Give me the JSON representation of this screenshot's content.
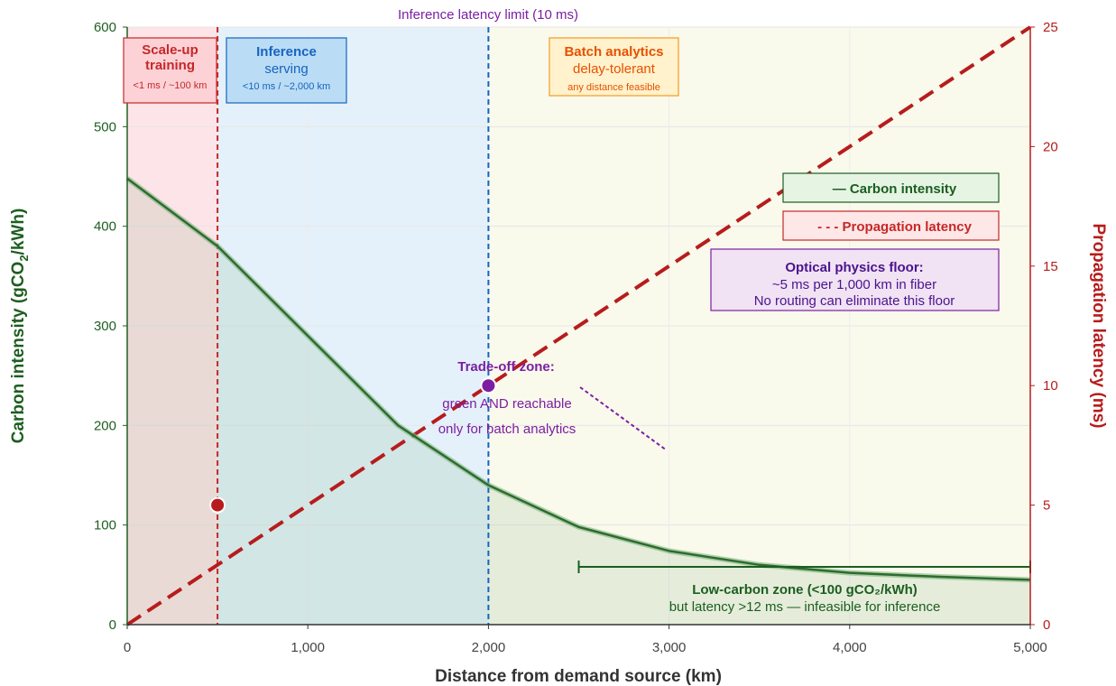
{
  "chart_data": {
    "type": "line",
    "xlabel": "Distance from demand source (km)",
    "ylabel_left": "Carbon intensity (gCO₂/kWh)",
    "ylabel_right": "Propagation latency (ms)",
    "xlim": [
      0,
      5000
    ],
    "ylim_left": [
      0,
      600
    ],
    "ylim_right": [
      0,
      25
    ],
    "x_ticks": [
      0,
      1000,
      2000,
      3000,
      4000,
      5000
    ],
    "x_tick_labels": [
      "0",
      "1,000",
      "2,000",
      "3,000",
      "4,000",
      "5,000"
    ],
    "y_left_ticks": [
      0,
      100,
      200,
      300,
      400,
      500,
      600
    ],
    "y_right_ticks": [
      0,
      5,
      10,
      15,
      20,
      25
    ],
    "grid": true,
    "series": [
      {
        "name": "Carbon intensity",
        "axis": "left",
        "style": "solid",
        "color": "#2e6b30",
        "x": [
          0,
          500,
          1000,
          1500,
          2000,
          2500,
          3000,
          3500,
          4000,
          4500,
          5000
        ],
        "y": [
          448,
          380,
          290,
          200,
          140,
          98,
          74,
          60,
          52,
          48,
          45
        ]
      },
      {
        "name": "Propagation latency",
        "axis": "right",
        "style": "dashed",
        "color": "#b71c1c",
        "x": [
          0,
          5000
        ],
        "y": [
          0,
          25
        ]
      }
    ],
    "regions": [
      {
        "x_range": [
          0,
          500
        ],
        "color": "#fde4e8",
        "title": "Scale-up training",
        "title_lines": [
          "Scale-up",
          "training"
        ],
        "subtitle": "<1 ms / ~100 km",
        "label_color": "#c62828",
        "border": "#c62828",
        "fill": "#fcd2d7"
      },
      {
        "x_range": [
          500,
          2000
        ],
        "color": "#e4f1fa",
        "title": "Inference",
        "line2": "serving",
        "subtitle": "<10 ms / ~2,000 km",
        "label_color": "#1565c0",
        "border": "#1565c0",
        "fill": "#bbdcf5"
      },
      {
        "x_range": [
          2000,
          5000
        ],
        "color": "#f9f9ec",
        "title": "Batch analytics",
        "line2": "delay-tolerant",
        "subtitle": "any distance feasible",
        "label_color": "#e65100",
        "border": "#f59a23",
        "fill": "#fff2cc"
      }
    ],
    "vlines": [
      {
        "x": 500,
        "color": "#c62828"
      },
      {
        "x": 2000,
        "color": "#1565c0",
        "label": "Inference latency limit (10 ms)",
        "label_color": "#7b1fa2"
      }
    ],
    "points": [
      {
        "x": 500,
        "y_left": 120,
        "color": "#b71c1c"
      },
      {
        "x": 2000,
        "y_left": 240,
        "color": "#7b1fa2"
      }
    ],
    "legend": [
      {
        "label": "Carbon intensity",
        "symbol": "—",
        "color": "#1b5e20",
        "bg": "#e6f4e4"
      },
      {
        "label": "Propagation latency",
        "symbol": "- - -",
        "color": "#c62828",
        "bg": "#fde7e7"
      }
    ],
    "physics_box": {
      "title": "Optical physics floor:",
      "line1": "~5 ms per 1,000 km in fiber",
      "line2": "No routing can eliminate this floor"
    },
    "tradeoff": {
      "title": "Trade-off zone:",
      "line1": "green AND reachable",
      "line2": "only for batch analytics"
    },
    "low_carbon": {
      "x_range": [
        2500,
        5000
      ],
      "y_left": 58,
      "title": "Low-carbon zone (<100 gCO₂/kWh)",
      "subtitle": "but latency >12 ms — infeasible for inference"
    }
  }
}
